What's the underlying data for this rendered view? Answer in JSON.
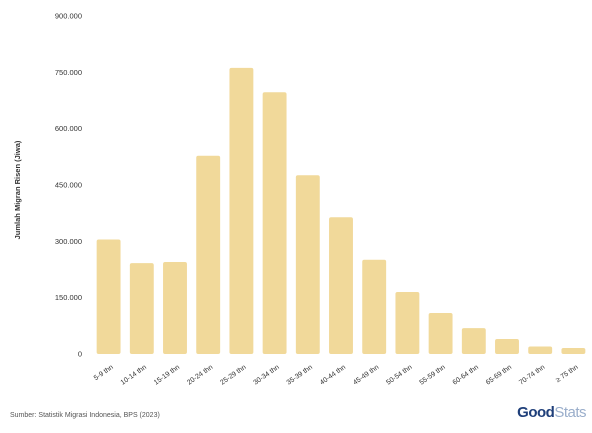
{
  "chart_data": {
    "type": "bar",
    "title": "",
    "xlabel": "",
    "ylabel": "Jumlah Migran Risen (Jiwa)",
    "categories": [
      "5-9 thn",
      "10-14 thn",
      "15-19 thn",
      "20-24 thn",
      "25-29 thn",
      "30-34 thn",
      "35-39 thn",
      "40-44 thn",
      "45-49 thn",
      "50-54 thn",
      "55-59 thn",
      "60-64 thn",
      "65-69 thn",
      "70-74 thn",
      "≥ 75 thn"
    ],
    "values": [
      305000,
      242000,
      245000,
      528000,
      762000,
      697000,
      476000,
      364000,
      251000,
      165000,
      109000,
      69000,
      40000,
      20000,
      16000
    ],
    "ylim": [
      0,
      900000
    ],
    "yticks": [
      "0",
      "150.000",
      "300.000",
      "450.000",
      "600.000",
      "750.000",
      "900.000"
    ],
    "grid": false,
    "bar_color": "#f1d99a"
  },
  "source": "Sumber: Statistik Migrasi Indonesia, BPS (2023)",
  "logo": {
    "part1": "Good",
    "part2": "Stats"
  }
}
